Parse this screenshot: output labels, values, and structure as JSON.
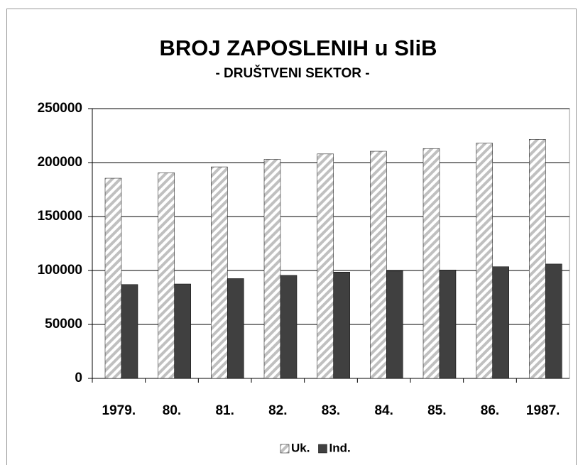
{
  "chart_data": {
    "type": "bar",
    "title": "BROJ ZAPOSLENIH u SliB",
    "subtitle": "- DRUŠTVENI SEKTOR -",
    "categories": [
      "1979.",
      "80.",
      "81.",
      "82.",
      "83.",
      "84.",
      "85.",
      "86.",
      "1987."
    ],
    "series": [
      {
        "name": "Uk.",
        "color": "#c0c0c0",
        "pattern": "hatch",
        "values": [
          185500,
          190500,
          196000,
          203000,
          208000,
          210500,
          213000,
          218000,
          221500
        ]
      },
      {
        "name": "Ind.",
        "color": "#404040",
        "values": [
          87000,
          87500,
          92500,
          95500,
          98500,
          99500,
          100500,
          103500,
          106000
        ]
      }
    ],
    "ylim": [
      0,
      250000
    ],
    "yticks": [
      0,
      50000,
      100000,
      150000,
      200000,
      250000
    ],
    "grid": true,
    "legend": "bottom"
  }
}
